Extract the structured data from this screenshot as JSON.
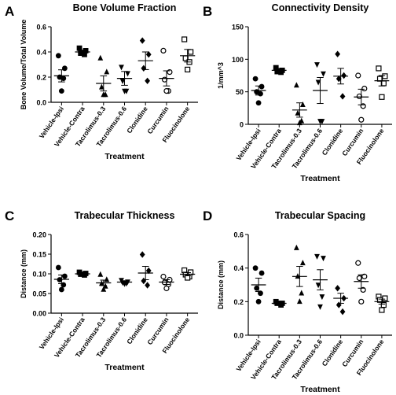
{
  "chart_data": [
    {
      "panel": "A",
      "type": "scatter",
      "title": "Bone Volume Fraction",
      "xlabel": "Treatment",
      "ylabel": "Bone  Volume/Total Volume",
      "ylim": [
        0,
        0.6
      ],
      "yticks": [
        "0.0",
        "0.2",
        "0.4",
        "0.6"
      ],
      "categories": [
        "Vehicle-Ipsi",
        "Vehicle-Contra",
        "Tacrolimus-0.3",
        "Tacrolimus-0.6",
        "Clonidine",
        "Curcumin",
        "Fluocinolone"
      ],
      "series": [
        {
          "marker": "circle-filled",
          "values": [
            0.37,
            0.27,
            0.2,
            0.19,
            0.09
          ],
          "mean": 0.21,
          "sem": 0.048
        },
        {
          "marker": "square-filled",
          "values": [
            0.43,
            0.41,
            0.39,
            0.38
          ],
          "mean": 0.4,
          "sem": 0.015
        },
        {
          "marker": "triangle-filled",
          "values": [
            0.35,
            0.24,
            0.12,
            0.06,
            0.06
          ],
          "mean": 0.15,
          "sem": 0.06
        },
        {
          "marker": "triangle-down-filled",
          "values": [
            0.28,
            0.23,
            0.17,
            0.09,
            0.09
          ],
          "mean": 0.19,
          "sem": 0.055
        },
        {
          "marker": "diamond-filled",
          "values": [
            0.49,
            0.38,
            0.27,
            0.17
          ],
          "mean": 0.33,
          "sem": 0.07
        },
        {
          "marker": "circle-open",
          "values": [
            0.41,
            0.24,
            0.18,
            0.09,
            0.09
          ],
          "mean": 0.19,
          "sem": 0.06
        },
        {
          "marker": "square-open",
          "values": [
            0.5,
            0.4,
            0.35,
            0.32,
            0.26
          ],
          "mean": 0.37,
          "sem": 0.05
        }
      ]
    },
    {
      "panel": "B",
      "type": "scatter",
      "title": "Connectivity Density",
      "xlabel": "Treatment",
      "ylabel": "1/mm^3",
      "ylim": [
        0,
        150
      ],
      "yticks": [
        "0",
        "50",
        "100",
        "150"
      ],
      "categories": [
        "Vehicle-Ipsi",
        "Vehicle-Contra",
        "Tacrolimus-0.3",
        "Tacrolimus-0.6",
        "Clonidine",
        "Curcumin",
        "Fluocinolone"
      ],
      "series": [
        {
          "marker": "circle-filled",
          "values": [
            70,
            58,
            50,
            47,
            33
          ],
          "mean": 52,
          "sem": 7
        },
        {
          "marker": "square-filled",
          "values": [
            87,
            83,
            81,
            80
          ],
          "mean": 83,
          "sem": 3
        },
        {
          "marker": "triangle-filled",
          "values": [
            60,
            30,
            17,
            5,
            2
          ],
          "mean": 22,
          "sem": 11
        },
        {
          "marker": "triangle-down-filled",
          "values": [
            92,
            78,
            65,
            5,
            5
          ],
          "mean": 52,
          "sem": 20
        },
        {
          "marker": "diamond-filled",
          "values": [
            108,
            75,
            70,
            43
          ],
          "mean": 74,
          "sem": 12
        },
        {
          "marker": "circle-open",
          "values": [
            75,
            55,
            43,
            28,
            7
          ],
          "mean": 42,
          "sem": 12
        },
        {
          "marker": "square-open",
          "values": [
            86,
            74,
            70,
            63,
            42
          ],
          "mean": 67,
          "sem": 8
        }
      ]
    },
    {
      "panel": "C",
      "type": "scatter",
      "title": "Trabecular Thickness",
      "xlabel": "Treatment",
      "ylabel": "Distance  (mm)",
      "ylim": [
        0,
        0.2
      ],
      "yticks": [
        "0.00",
        "0.05",
        "0.10",
        "0.15",
        "0.20"
      ],
      "categories": [
        "Vehicle-Ipsi",
        "Vehicle-Contra",
        "Tacrolimus-0.3",
        "Tacrolimus-0.6",
        "Clonidine",
        "Curcumin",
        "Fluocinolone"
      ],
      "series": [
        {
          "marker": "circle-filled",
          "values": [
            0.116,
            0.094,
            0.085,
            0.072,
            0.06
          ],
          "mean": 0.086,
          "sem": 0.011
        },
        {
          "marker": "square-filled",
          "values": [
            0.104,
            0.101,
            0.099,
            0.097
          ],
          "mean": 0.1,
          "sem": 0.003
        },
        {
          "marker": "triangle-filled",
          "values": [
            0.098,
            0.085,
            0.075,
            0.068,
            0.06
          ],
          "mean": 0.077,
          "sem": 0.007
        },
        {
          "marker": "triangle-down-filled",
          "values": [
            0.084,
            0.08,
            0.078,
            0.076,
            0.075
          ],
          "mean": 0.079,
          "sem": 0.003
        },
        {
          "marker": "diamond-filled",
          "values": [
            0.149,
            0.108,
            0.082,
            0.071
          ],
          "mean": 0.102,
          "sem": 0.017
        },
        {
          "marker": "circle-open",
          "values": [
            0.093,
            0.085,
            0.078,
            0.073,
            0.063
          ],
          "mean": 0.079,
          "sem": 0.006
        },
        {
          "marker": "square-open",
          "values": [
            0.109,
            0.104,
            0.098,
            0.093,
            0.09
          ],
          "mean": 0.099,
          "sem": 0.004
        }
      ]
    },
    {
      "panel": "D",
      "type": "scatter",
      "title": "Trabecular Spacing",
      "xlabel": "Treatment",
      "ylabel": "Distance (mm)",
      "ylim": [
        0,
        0.6
      ],
      "yticks": [
        "0.0",
        "0.2",
        "0.4",
        "0.6"
      ],
      "categories": [
        "Vehicle-Ipsi",
        "Vehicle-Contra",
        "Tacrolimus-0.3",
        "Tacrolimus-0.6",
        "Clonidine",
        "Curcumin",
        "Fluocinolone"
      ],
      "series": [
        {
          "marker": "circle-filled",
          "values": [
            0.4,
            0.37,
            0.28,
            0.25,
            0.2
          ],
          "mean": 0.3,
          "sem": 0.04
        },
        {
          "marker": "square-filled",
          "values": [
            0.2,
            0.19,
            0.19,
            0.18
          ],
          "mean": 0.19,
          "sem": 0.005
        },
        {
          "marker": "triangle-filled",
          "values": [
            0.52,
            0.43,
            0.35,
            0.25,
            0.2
          ],
          "mean": 0.35,
          "sem": 0.06
        },
        {
          "marker": "triangle-down-filled",
          "values": [
            0.47,
            0.46,
            0.3,
            0.23,
            0.17
          ],
          "mean": 0.33,
          "sem": 0.06
        },
        {
          "marker": "diamond-filled",
          "values": [
            0.28,
            0.22,
            0.18,
            0.14
          ],
          "mean": 0.22,
          "sem": 0.03
        },
        {
          "marker": "circle-open",
          "values": [
            0.43,
            0.35,
            0.34,
            0.27,
            0.2
          ],
          "mean": 0.32,
          "sem": 0.04
        },
        {
          "marker": "square-open",
          "values": [
            0.23,
            0.22,
            0.21,
            0.18,
            0.15
          ],
          "mean": 0.2,
          "sem": 0.015
        }
      ]
    }
  ]
}
